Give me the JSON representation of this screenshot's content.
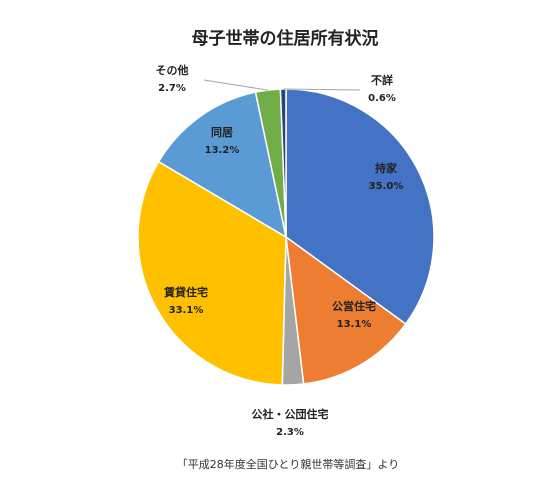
{
  "chart_data": {
    "type": "pie",
    "title": "母子世帯の住居所有状況",
    "slices": [
      {
        "label": "持家",
        "value": 35.0,
        "pct_text": "35.0%",
        "color": "#4472C4"
      },
      {
        "label": "公営住宅",
        "value": 13.1,
        "pct_text": "13.1%",
        "color": "#ED7D31"
      },
      {
        "label": "公社・公団住宅",
        "value": 2.3,
        "pct_text": "2.3%",
        "color": "#A5A5A5"
      },
      {
        "label": "賃貸住宅",
        "value": 33.1,
        "pct_text": "33.1%",
        "color": "#FFC000"
      },
      {
        "label": "同居",
        "value": 13.2,
        "pct_text": "13.2%",
        "color": "#5B9BD5"
      },
      {
        "label": "その他",
        "value": 2.7,
        "pct_text": "2.7%",
        "color": "#70AD47"
      },
      {
        "label": "不詳",
        "value": 0.6,
        "pct_text": "0.6%",
        "color": "#264478"
      }
    ]
  },
  "source_note": "「平成28年度全国ひとり親世帯等調査」より"
}
